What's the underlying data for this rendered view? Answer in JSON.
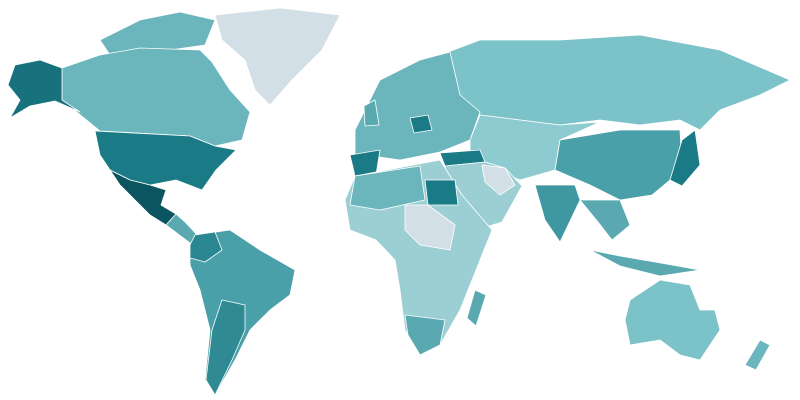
{
  "map": {
    "type": "choropleth",
    "projection": "world",
    "background": "#ffffff",
    "border_color": "#ffffff",
    "color_scale": [
      "#d3dfe6",
      "#9ccfd3",
      "#7cc3c9",
      "#5aa9b1",
      "#3f97a1",
      "#1a7a86",
      "#0b5560"
    ],
    "no_data_color": "#d3dfe6",
    "regions": {
      "alaska": "#17727d",
      "canada": "#6bb5bd",
      "arctic_islands": "#6bb5bd",
      "greenland": "#d3dfe6",
      "usa": "#1a7a86",
      "mexico": "#0b5560",
      "central_america": "#5aa9b1",
      "south_america": "#4aa0a9",
      "colombia": "#2a8792",
      "argentina": "#2f8a94",
      "europe": "#6bb5bd",
      "uk": "#5aa9b1",
      "spain": "#1a7a86",
      "poland": "#1a7a86",
      "russia": "#7cc3c9",
      "central_asia": "#8dcbd0",
      "middle_east": "#9ccfd3",
      "iran": "#d3dfe6",
      "turkey": "#1a7a86",
      "china": "#4aa0a9",
      "india": "#3f97a1",
      "japan": "#1a7a86",
      "se_asia": "#5aa9b1",
      "indonesia": "#5aa9b1",
      "africa": "#9ccfd3",
      "north_africa": "#6bb5bd",
      "egypt": "#1a7a86",
      "central_africa_nodata": "#d3dfe6",
      "south_africa": "#5aa9b1",
      "madagascar": "#5aa9b1",
      "australia": "#7cc3c9",
      "new_zealand": "#6bb5bd"
    }
  }
}
